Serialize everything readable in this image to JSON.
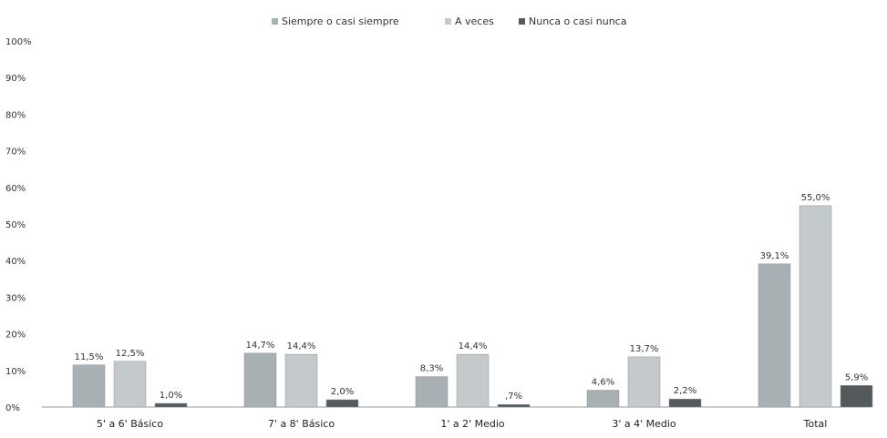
{
  "chart_data": {
    "type": "bar",
    "categories": [
      "5' a 6' Básico",
      "7' a 8' Básico",
      "1' a 2' Medio",
      "3' a 4' Medio",
      "Total"
    ],
    "series": [
      {
        "name": "Siempre o casi siempre",
        "values": [
          11.5,
          14.7,
          8.3,
          4.6,
          39.1
        ],
        "labels": [
          "11,5%",
          "14,7%",
          "8,3%",
          "4,6%",
          "39,1%"
        ],
        "color": "#a9b0b3"
      },
      {
        "name": "A veces",
        "values": [
          12.5,
          14.4,
          14.4,
          13.7,
          55.0
        ],
        "labels": [
          "12,5%",
          "14,4%",
          "14,4%",
          "13,7%",
          "55,0%"
        ],
        "color": "#c4c9cc"
      },
      {
        "name": "Nunca o casi nunca",
        "values": [
          1.0,
          2.0,
          0.7,
          2.2,
          5.9
        ],
        "labels": [
          "1,0%",
          "2,0%",
          ",7%",
          "2,2%",
          "5,9%"
        ],
        "color": "#54595c"
      }
    ],
    "yticks": [
      "0%",
      "10%",
      "20%",
      "30%",
      "40%",
      "50%",
      "60%",
      "70%",
      "80%",
      "90%",
      "100%"
    ],
    "ylim": [
      0,
      100
    ],
    "legend": "top",
    "grid": false
  }
}
